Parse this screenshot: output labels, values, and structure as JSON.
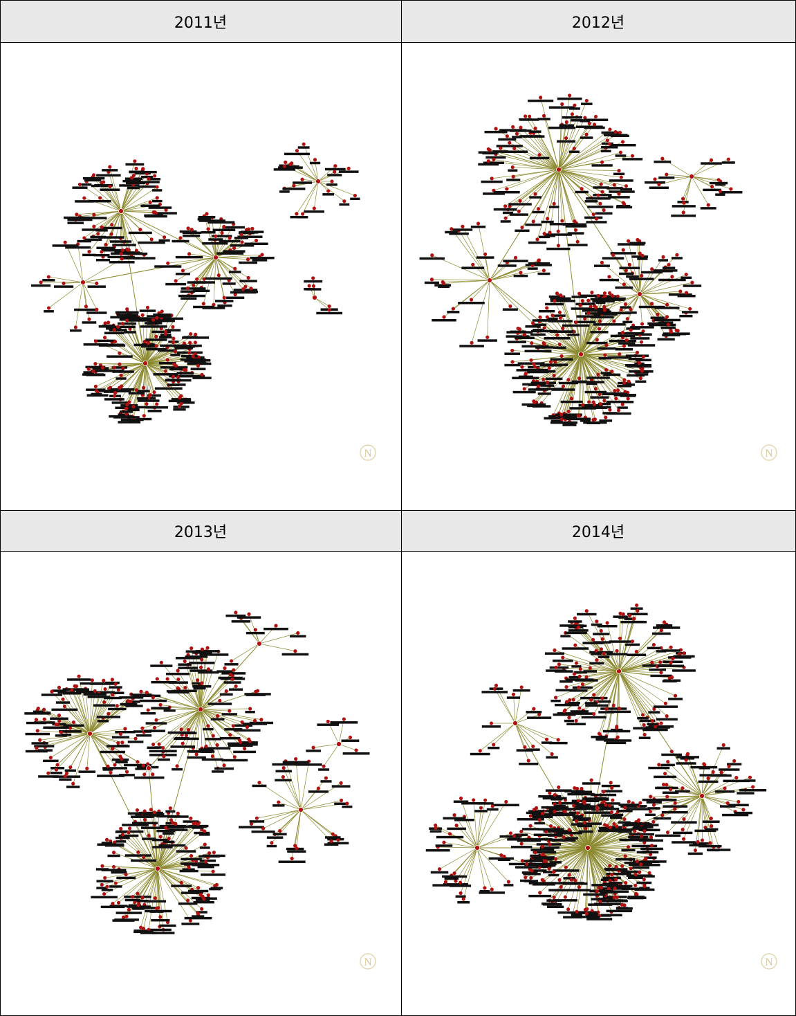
{
  "panels": [
    {
      "title": "2011년"
    },
    {
      "title": "2012년"
    },
    {
      "title": "2013년"
    },
    {
      "title": "2014년"
    }
  ],
  "watermark": "N"
}
